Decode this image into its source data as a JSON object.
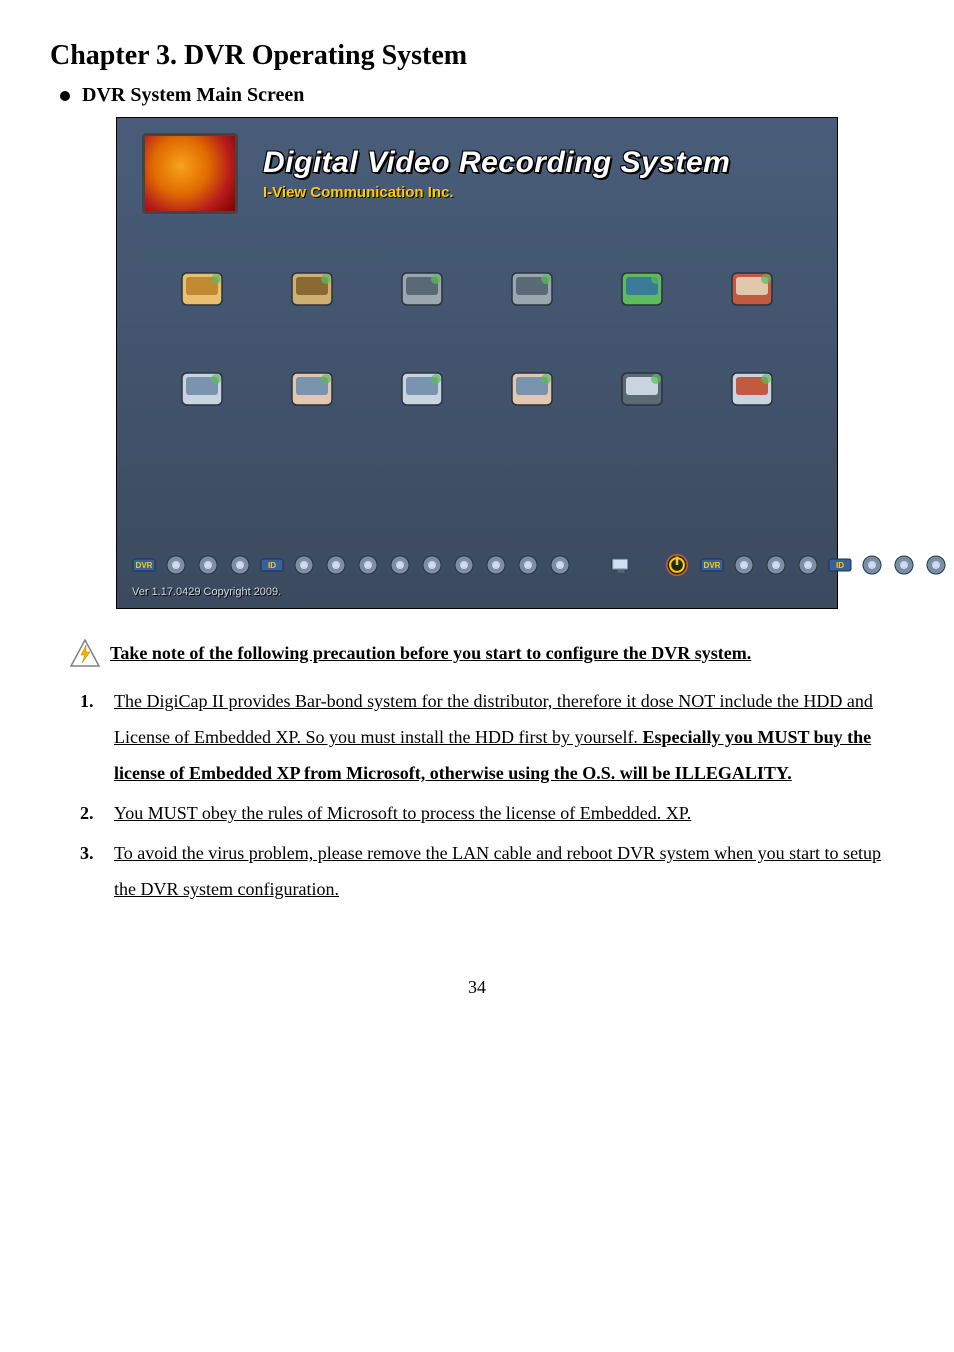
{
  "chapter_title": "Chapter 3. DVR Operating System",
  "sub_heading": "DVR System Main Screen",
  "screenshot": {
    "main_title": "Digital Video Recording System",
    "subtitle": "I-View Communication Inc.",
    "version": "Ver 1.17.0429 Copyright 2009.",
    "bg_gradient_top": "#495d7a",
    "bg_gradient_bottom": "#3b4a5f",
    "title_color": "#ffffff",
    "subtitle_color": "#ffcc00",
    "big_icons": [
      {
        "name": "tools-folder-icon",
        "colors": [
          "#e8c070",
          "#c08a30"
        ]
      },
      {
        "name": "home-icon",
        "colors": [
          "#d0b070",
          "#8a6a30"
        ]
      },
      {
        "name": "camera-angle-icon-1",
        "colors": [
          "#9aa6b0",
          "#5a6a75"
        ]
      },
      {
        "name": "camera-angle-icon-2",
        "colors": [
          "#9aa6b0",
          "#5a6a75"
        ]
      },
      {
        "name": "globe-monitor-icon",
        "colors": [
          "#5dbb5d",
          "#3a7a9a"
        ]
      },
      {
        "name": "3gp-file-icon",
        "colors": [
          "#c05a40",
          "#e0c7ae"
        ]
      },
      {
        "name": "monitor-config-icon",
        "colors": [
          "#c8d4e0",
          "#7a93af"
        ]
      },
      {
        "name": "clock-hand-icon",
        "colors": [
          "#e0c7ae",
          "#7a93af"
        ]
      },
      {
        "name": "network-monitor-icon",
        "colors": [
          "#c8d4e0",
          "#7a93af"
        ]
      },
      {
        "name": "tools-hand-icon",
        "colors": [
          "#e0c7ae",
          "#7a93af"
        ]
      },
      {
        "name": "shield-card-icon",
        "colors": [
          "#5a6a75",
          "#c8d4e0"
        ]
      },
      {
        "name": "printer-red-icon",
        "colors": [
          "#c8d4e0",
          "#c05a40"
        ]
      }
    ],
    "toolbar_icons": [
      {
        "name": "dvr-label-icon",
        "label": "DVR"
      },
      {
        "name": "server-icon"
      },
      {
        "name": "globe-small-icon"
      },
      {
        "name": "gears-icon"
      },
      {
        "name": "id-icon",
        "label": "ID"
      },
      {
        "name": "network-small-icon"
      },
      {
        "name": "settings-icon"
      },
      {
        "name": "tool-small-icon"
      },
      {
        "name": "clock-small-icon"
      },
      {
        "name": "display-icon"
      },
      {
        "name": "pen-icon"
      },
      {
        "name": "card-icon"
      },
      {
        "name": "volume-icon"
      },
      {
        "name": "keyboard-icon"
      }
    ],
    "right_icons": [
      {
        "name": "exit-monitor-icon"
      },
      {
        "name": "power-icon"
      }
    ]
  },
  "precaution_heading": "Take note of the following precaution before you start to configure the DVR system.",
  "precautions": [
    {
      "pre": "The DigiCap II provides Bar-bond system for the distributor, therefore it dose NOT include the HDD and License of Embedded XP. So you must install the HDD first by yourself. ",
      "bold": "Especially you MUST buy the license of Embedded XP from Microsoft, otherwise using the O.S. will be ILLEGALITY."
    },
    {
      "pre": "You MUST obey the rules of Microsoft to process the license of Embedded. XP.",
      "bold": ""
    },
    {
      "pre": "To avoid the virus problem, please remove the LAN cable and reboot DVR system when you start to setup the DVR system configuration.",
      "bold": ""
    }
  ],
  "page_number": "34"
}
